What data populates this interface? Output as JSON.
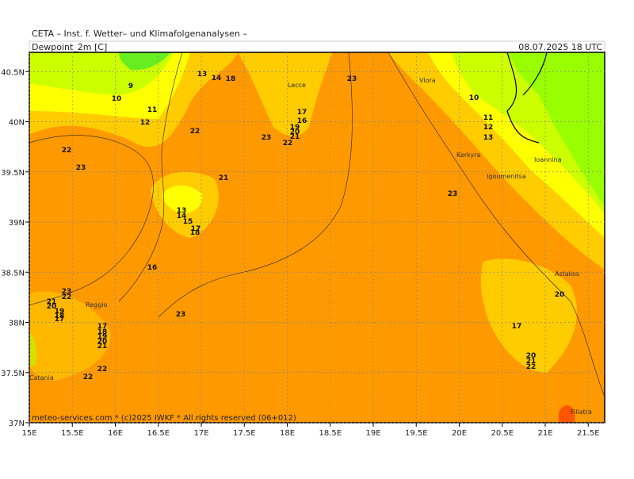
{
  "header": "CETA – Inst. f. Wetter– und Klimafolgenanalysen –",
  "title": "Dewpoint_2m [C]",
  "datetime": "08.07.2025 18 UTC",
  "footer": "meteo-services.com * (c)2025 IWKF * All rights reserved (06+012)",
  "axes": {
    "x_ticks": [
      {
        "value": 15,
        "label": "15E"
      },
      {
        "value": 15.5,
        "label": "15.5E"
      },
      {
        "value": 16,
        "label": "16E"
      },
      {
        "value": 16.5,
        "label": "16.5E"
      },
      {
        "value": 17,
        "label": "17E"
      },
      {
        "value": 17.5,
        "label": "17.5E"
      },
      {
        "value": 18,
        "label": "18E"
      },
      {
        "value": 18.5,
        "label": "18.5E"
      },
      {
        "value": 19,
        "label": "19E"
      },
      {
        "value": 19.5,
        "label": "19.5E"
      },
      {
        "value": 20,
        "label": "20E"
      },
      {
        "value": 20.5,
        "label": "20.5E"
      },
      {
        "value": 21,
        "label": "21E"
      },
      {
        "value": 21.5,
        "label": "21.5E"
      }
    ],
    "y_ticks": [
      {
        "value": 37,
        "label": "37N"
      },
      {
        "value": 37.5,
        "label": "37.5N"
      },
      {
        "value": 38,
        "label": "38N"
      },
      {
        "value": 38.5,
        "label": "38.5N"
      },
      {
        "value": 39,
        "label": "39N"
      },
      {
        "value": 39.5,
        "label": "39.5N"
      },
      {
        "value": 40,
        "label": "40N"
      },
      {
        "value": 40.5,
        "label": "40.5N"
      }
    ]
  },
  "contour_labels": [
    "9",
    "10",
    "11",
    "12",
    "22",
    "23",
    "13",
    "14",
    "18",
    "22",
    "21",
    "13",
    "14",
    "15",
    "17",
    "18",
    "16",
    "23",
    "17",
    "16",
    "19",
    "20",
    "21",
    "23",
    "22",
    "10",
    "11",
    "12",
    "13",
    "23",
    "23",
    "22",
    "21",
    "20",
    "19",
    "18",
    "17",
    "17",
    "18",
    "19",
    "20",
    "21",
    "23",
    "22",
    "22",
    "17",
    "20",
    "20",
    "21",
    "22"
  ],
  "places": [
    "Vlora",
    "Lecce",
    "Kerkyra",
    "Igoumenitsa",
    "Ioannina",
    "Reggio",
    "Astakos",
    "Catania",
    "Filiatra"
  ]
}
